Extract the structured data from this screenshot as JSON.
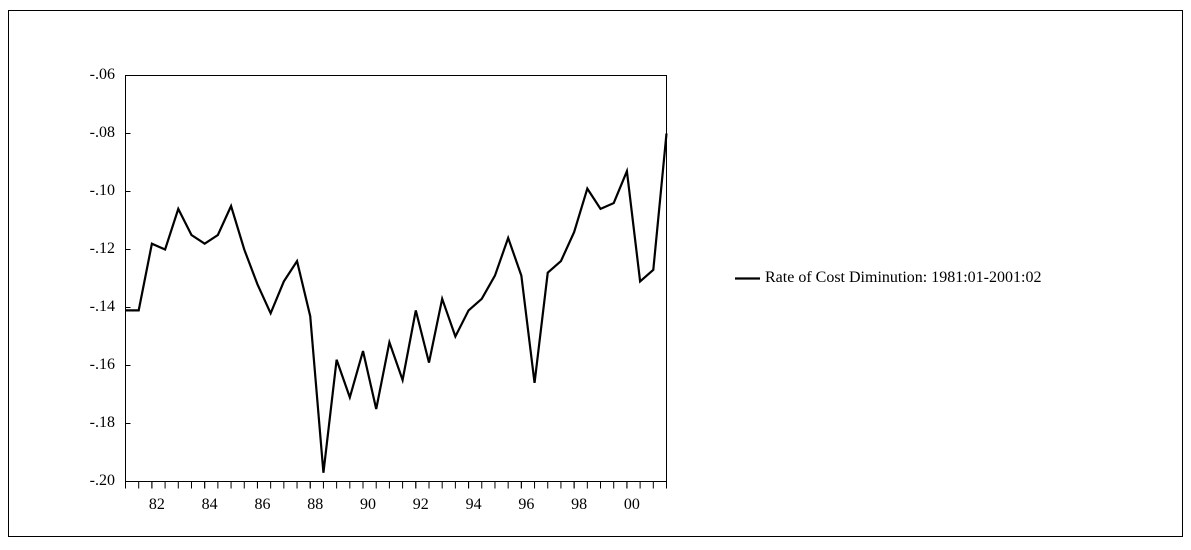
{
  "chart_data": {
    "type": "line",
    "x": [
      1981,
      1981.5,
      1982,
      1982.5,
      1983,
      1983.5,
      1984,
      1984.5,
      1985,
      1985.5,
      1986,
      1986.5,
      1987,
      1987.5,
      1988,
      1988.5,
      1989,
      1989.5,
      1990,
      1990.5,
      1991,
      1991.5,
      1992,
      1992.5,
      1993,
      1993.5,
      1994,
      1994.5,
      1995,
      1995.5,
      1996,
      1996.5,
      1997,
      1997.5,
      1998,
      1998.5,
      1999,
      1999.5,
      2000,
      2000.5,
      2001,
      2001.5
    ],
    "series": [
      {
        "name": "Rate of Cost Diminution: 1981:01-2001:02",
        "color": "#000000",
        "values": [
          -0.141,
          -0.141,
          -0.118,
          -0.12,
          -0.106,
          -0.115,
          -0.118,
          -0.115,
          -0.105,
          -0.12,
          -0.132,
          -0.142,
          -0.131,
          -0.124,
          -0.143,
          -0.197,
          -0.158,
          -0.171,
          -0.155,
          -0.175,
          -0.152,
          -0.165,
          -0.141,
          -0.159,
          -0.137,
          -0.15,
          -0.141,
          -0.137,
          -0.129,
          -0.116,
          -0.129,
          -0.166,
          -0.128,
          -0.124,
          -0.114,
          -0.099,
          -0.106,
          -0.104,
          -0.093,
          -0.131,
          -0.127,
          -0.08
        ]
      }
    ],
    "xlim": [
      1981,
      2001.5
    ],
    "xticks": [
      {
        "value": 1982,
        "label": "82"
      },
      {
        "value": 1984,
        "label": "84"
      },
      {
        "value": 1986,
        "label": "86"
      },
      {
        "value": 1988,
        "label": "88"
      },
      {
        "value": 1990,
        "label": "90"
      },
      {
        "value": 1992,
        "label": "92"
      },
      {
        "value": 1994,
        "label": "94"
      },
      {
        "value": 1996,
        "label": "96"
      },
      {
        "value": 1998,
        "label": "98"
      },
      {
        "value": 2000,
        "label": "00"
      }
    ],
    "ylim": [
      -0.2,
      -0.06
    ],
    "yticks": [
      {
        "value": -0.2,
        "label": "-.20"
      },
      {
        "value": -0.18,
        "label": "-.18"
      },
      {
        "value": -0.16,
        "label": "-.16"
      },
      {
        "value": -0.14,
        "label": "-.14"
      },
      {
        "value": -0.12,
        "label": "-.12"
      },
      {
        "value": -0.1,
        "label": "-.10"
      },
      {
        "value": -0.08,
        "label": "-.08"
      },
      {
        "value": -0.06,
        "label": "-.06"
      }
    ],
    "grid": false,
    "legend": "right"
  }
}
